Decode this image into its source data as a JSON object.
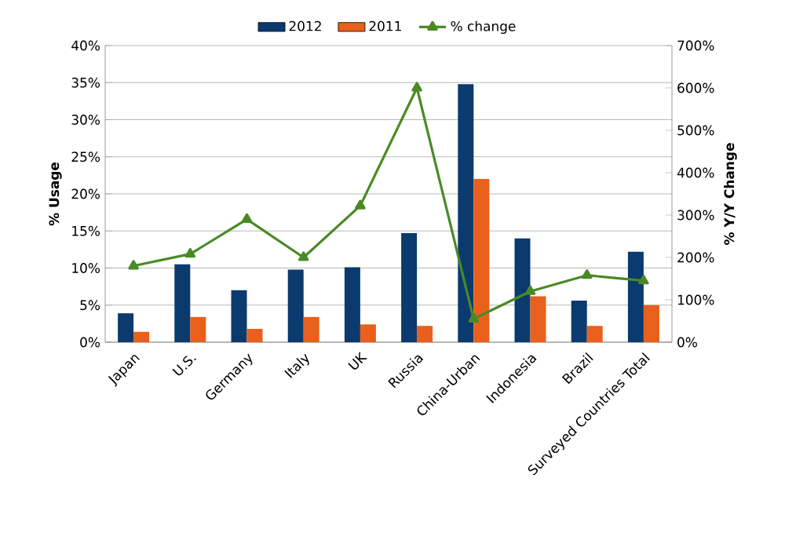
{
  "chart_data": {
    "type": "bar",
    "ylabel": "% Usage",
    "y2label": "% Y/Y Change",
    "categories": [
      "Japan",
      "U.S.",
      "Germany",
      "Italy",
      "UK",
      "Russia",
      "China-Urban",
      "Indonesia",
      "Brazil",
      "Surveyed Countries Total"
    ],
    "series": [
      {
        "name": "2012",
        "color": "#0b3a6e",
        "values": [
          3.9,
          10.5,
          7.0,
          9.8,
          10.1,
          14.7,
          34.8,
          14.0,
          5.6,
          12.2
        ]
      },
      {
        "name": "2011",
        "color": "#e8601c",
        "values": [
          1.4,
          3.4,
          1.8,
          3.4,
          2.4,
          2.2,
          22.0,
          6.2,
          2.2,
          5.0
        ]
      },
      {
        "name": "% change",
        "type": "line",
        "axis": "y2",
        "color": "#4a8a26",
        "marker": "triangle",
        "values": [
          180,
          208,
          290,
          200,
          322,
          600,
          55,
          120,
          158,
          145
        ]
      }
    ],
    "ylim": [
      0,
      40
    ],
    "yticks": [
      {
        "value": 0,
        "label": "0%"
      },
      {
        "value": 5,
        "label": "5%"
      },
      {
        "value": 10,
        "label": "10%"
      },
      {
        "value": 15,
        "label": "15%"
      },
      {
        "value": 20,
        "label": "20%"
      },
      {
        "value": 25,
        "label": "25%"
      },
      {
        "value": 30,
        "label": "30%"
      },
      {
        "value": 35,
        "label": "35%"
      },
      {
        "value": 40,
        "label": "40%"
      }
    ],
    "y2lim": [
      0,
      700
    ],
    "y2ticks": [
      {
        "value": 0,
        "label": "0%"
      },
      {
        "value": 100,
        "label": "100%"
      },
      {
        "value": 200,
        "label": "200%"
      },
      {
        "value": 300,
        "label": "300%"
      },
      {
        "value": 400,
        "label": "400%"
      },
      {
        "value": 500,
        "label": "500%"
      },
      {
        "value": 600,
        "label": "600%"
      },
      {
        "value": 700,
        "label": "700%"
      }
    ],
    "grid": "y",
    "legend": "top"
  }
}
